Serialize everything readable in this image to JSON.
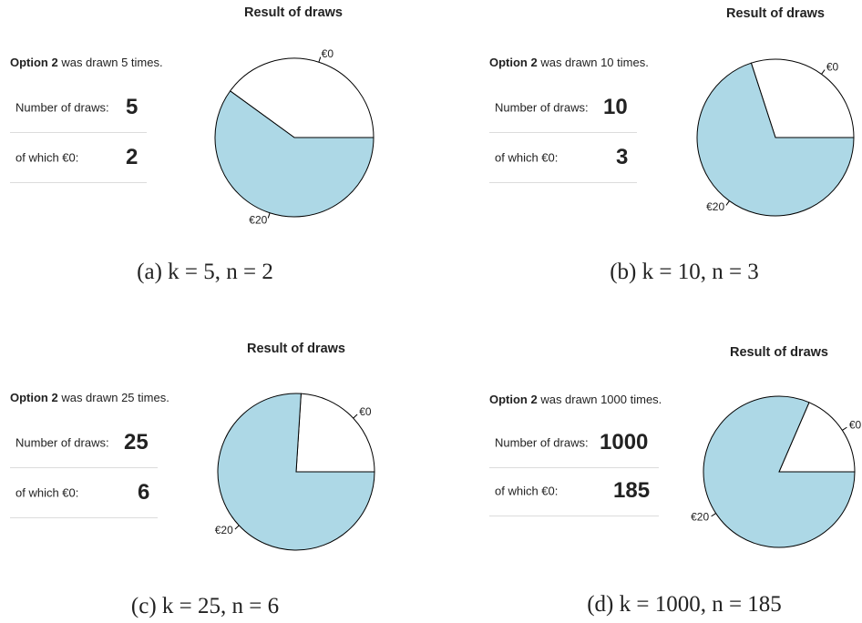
{
  "panels": [
    {
      "headline_option": "Option 2",
      "headline_rest": " was drawn 5 times.",
      "draws_label": "Number of draws:",
      "draws_value": "5",
      "zero_label": "of which €0:",
      "zero_value": "2",
      "caption": "(a) k = 5, n = 2"
    },
    {
      "headline_option": "Option 2",
      "headline_rest": " was drawn 10 times.",
      "draws_label": "Number of draws:",
      "draws_value": "10",
      "zero_label": "of which €0:",
      "zero_value": "3",
      "caption": "(b) k = 10, n = 3"
    },
    {
      "headline_option": "Option 2",
      "headline_rest": " was drawn 25 times.",
      "draws_label": "Number of draws:",
      "draws_value": "25",
      "zero_label": "of which €0:",
      "zero_value": "6",
      "caption": "(c) k = 25, n = 6"
    },
    {
      "headline_option": "Option 2",
      "headline_rest": " was drawn 1000 times.",
      "draws_label": "Number of draws:",
      "draws_value": "1000",
      "zero_label": "of which €0:",
      "zero_value": "185",
      "caption": "(d) k = 1000, n = 185"
    }
  ],
  "chart_data": [
    {
      "type": "pie",
      "title": "Result of draws",
      "labels": [
        "€0",
        "€20"
      ],
      "values": [
        2,
        3
      ],
      "colors": [
        "#ffffff",
        "#add8e6"
      ]
    },
    {
      "type": "pie",
      "title": "Result of draws",
      "labels": [
        "€0",
        "€20"
      ],
      "values": [
        3,
        7
      ],
      "colors": [
        "#ffffff",
        "#add8e6"
      ]
    },
    {
      "type": "pie",
      "title": "Result of draws",
      "labels": [
        "€0",
        "€20"
      ],
      "values": [
        6,
        19
      ],
      "colors": [
        "#ffffff",
        "#add8e6"
      ]
    },
    {
      "type": "pie",
      "title": "Result of draws",
      "labels": [
        "€0",
        "€20"
      ],
      "values": [
        185,
        815
      ],
      "colors": [
        "#ffffff",
        "#add8e6"
      ]
    }
  ]
}
